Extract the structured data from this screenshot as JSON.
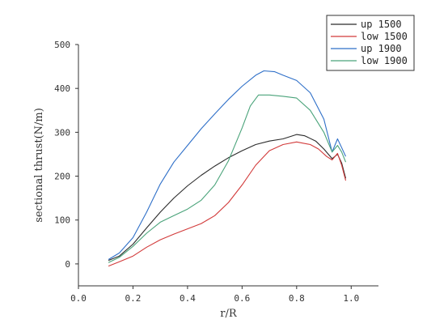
{
  "chart_data": {
    "type": "line",
    "title": "",
    "xlabel": "r/R",
    "ylabel": "sectional thrust(N/m)",
    "xlim": [
      0.0,
      1.1
    ],
    "ylim": [
      -50,
      500
    ],
    "x_ticks": [
      "0.0",
      "0.2",
      "0.4",
      "0.6",
      "0.8",
      "1.0"
    ],
    "x_tick_values": [
      0.0,
      0.2,
      0.4,
      0.6,
      0.8,
      1.0
    ],
    "y_ticks": [
      "0",
      "100",
      "200",
      "300",
      "400",
      "500"
    ],
    "y_tick_values": [
      0,
      100,
      200,
      300,
      400,
      500
    ],
    "grid": false,
    "legend_position": "top-right",
    "series": [
      {
        "name": "up 1500",
        "color": "#2b2b2b",
        "points": [
          [
            0.11,
            8
          ],
          [
            0.15,
            18
          ],
          [
            0.2,
            45
          ],
          [
            0.25,
            82
          ],
          [
            0.3,
            118
          ],
          [
            0.35,
            150
          ],
          [
            0.4,
            178
          ],
          [
            0.45,
            202
          ],
          [
            0.5,
            223
          ],
          [
            0.55,
            242
          ],
          [
            0.6,
            258
          ],
          [
            0.65,
            272
          ],
          [
            0.7,
            280
          ],
          [
            0.75,
            285
          ],
          [
            0.8,
            295
          ],
          [
            0.83,
            292
          ],
          [
            0.87,
            280
          ],
          [
            0.9,
            262
          ],
          [
            0.93,
            240
          ],
          [
            0.95,
            250
          ],
          [
            0.965,
            230
          ],
          [
            0.98,
            195
          ]
        ]
      },
      {
        "name": "low 1500",
        "color": "#d23a3a",
        "points": [
          [
            0.11,
            -5
          ],
          [
            0.15,
            5
          ],
          [
            0.2,
            18
          ],
          [
            0.25,
            38
          ],
          [
            0.3,
            55
          ],
          [
            0.35,
            68
          ],
          [
            0.4,
            80
          ],
          [
            0.45,
            92
          ],
          [
            0.5,
            110
          ],
          [
            0.55,
            140
          ],
          [
            0.6,
            180
          ],
          [
            0.65,
            225
          ],
          [
            0.7,
            258
          ],
          [
            0.75,
            272
          ],
          [
            0.8,
            278
          ],
          [
            0.85,
            272
          ],
          [
            0.88,
            262
          ],
          [
            0.91,
            245
          ],
          [
            0.93,
            237
          ],
          [
            0.95,
            252
          ],
          [
            0.965,
            225
          ],
          [
            0.98,
            190
          ]
        ]
      },
      {
        "name": "up 1900",
        "color": "#2e6fc8",
        "points": [
          [
            0.11,
            10
          ],
          [
            0.15,
            25
          ],
          [
            0.2,
            60
          ],
          [
            0.25,
            118
          ],
          [
            0.3,
            182
          ],
          [
            0.35,
            232
          ],
          [
            0.4,
            270
          ],
          [
            0.45,
            308
          ],
          [
            0.5,
            342
          ],
          [
            0.55,
            375
          ],
          [
            0.6,
            405
          ],
          [
            0.65,
            430
          ],
          [
            0.68,
            440
          ],
          [
            0.72,
            438
          ],
          [
            0.75,
            430
          ],
          [
            0.8,
            418
          ],
          [
            0.85,
            390
          ],
          [
            0.9,
            330
          ],
          [
            0.93,
            255
          ],
          [
            0.95,
            285
          ],
          [
            0.965,
            265
          ],
          [
            0.98,
            245
          ]
        ]
      },
      {
        "name": "low 1900",
        "color": "#4aa37a",
        "points": [
          [
            0.11,
            3
          ],
          [
            0.15,
            15
          ],
          [
            0.2,
            40
          ],
          [
            0.25,
            70
          ],
          [
            0.3,
            95
          ],
          [
            0.35,
            110
          ],
          [
            0.4,
            125
          ],
          [
            0.45,
            145
          ],
          [
            0.5,
            180
          ],
          [
            0.55,
            235
          ],
          [
            0.6,
            310
          ],
          [
            0.63,
            360
          ],
          [
            0.66,
            385
          ],
          [
            0.7,
            385
          ],
          [
            0.75,
            382
          ],
          [
            0.8,
            378
          ],
          [
            0.85,
            350
          ],
          [
            0.9,
            300
          ],
          [
            0.93,
            255
          ],
          [
            0.95,
            270
          ],
          [
            0.965,
            255
          ],
          [
            0.98,
            232
          ]
        ]
      }
    ]
  }
}
